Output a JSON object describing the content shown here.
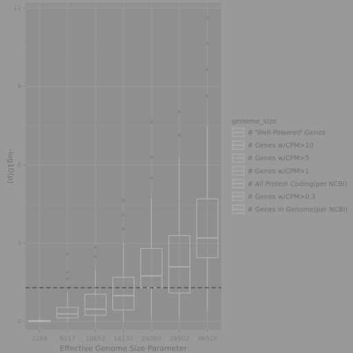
{
  "chart_data": {
    "type": "box",
    "xlabel": "Effective Genome Size Parameter",
    "ylabel": "-log10(p)",
    "categories": [
      "2288",
      "8117",
      "10652",
      "14137",
      "24080",
      "29502",
      "46020"
    ],
    "ylim": [
      -0.3,
      12.2
    ],
    "yticks": [
      0,
      3,
      6,
      9,
      12
    ],
    "threshold_line": 1.3,
    "grid": true,
    "legend": {
      "title": "genome_size",
      "placement": "right",
      "entries": [
        "# 'Well-Powered' Genes",
        "# Genes w/CPM>10",
        "# Genes w/CPM>5",
        "# Genes w/CPM>1",
        "# All Protein Coding(per NCBI)",
        "# Genes w/CPM>0.3",
        "# Genes in Genome(per NCBI)"
      ]
    },
    "boxes": [
      {
        "category": "2288",
        "lower": 0.0,
        "q1": 0.0,
        "median": 0.02,
        "q3": 0.05,
        "upper": 0.15,
        "outliers": []
      },
      {
        "category": "8117",
        "lower": 0.0,
        "q1": 0.15,
        "median": 0.3,
        "q3": 0.55,
        "upper": 1.1,
        "outliers": [
          1.25,
          1.6,
          1.85,
          2.55
        ]
      },
      {
        "category": "10652",
        "lower": 0.0,
        "q1": 0.25,
        "median": 0.48,
        "q3": 1.05,
        "upper": 2.0,
        "outliers": [
          2.45,
          2.8
        ]
      },
      {
        "category": "14137",
        "lower": 0.0,
        "q1": 0.45,
        "median": 1.0,
        "q3": 1.7,
        "upper": 3.0,
        "outliers": [
          3.5,
          4.05,
          4.6
        ]
      },
      {
        "category": "24080",
        "lower": 0.1,
        "q1": 1.3,
        "median": 1.75,
        "q3": 2.8,
        "upper": 4.75,
        "outliers": [
          5.45,
          6.25,
          7.6
        ]
      },
      {
        "category": "29502",
        "lower": 0.1,
        "q1": 1.1,
        "median": 2.1,
        "q3": 3.3,
        "upper": 6.25,
        "outliers": [
          7.1,
          8.0
        ]
      },
      {
        "category": "46020",
        "lower": 0.4,
        "q1": 2.45,
        "median": 3.2,
        "q3": 4.7,
        "upper": 7.5,
        "outliers": [
          8.6,
          9.6,
          10.6,
          11.6
        ]
      }
    ],
    "colors": {
      "panel": "#8f8f8f",
      "grid": "#9c9c9c",
      "box_stroke": "#b0b0b0",
      "threshold": "#404040"
    }
  }
}
